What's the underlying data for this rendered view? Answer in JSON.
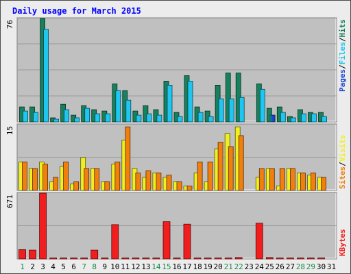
{
  "title": "Daily usage for March 2015",
  "colors": {
    "title": "#0000ff",
    "hits": "#17805c",
    "files": "#1ec6f0",
    "pages": "#1e46d0",
    "visits": "#f0f020",
    "sites": "#f07f0e",
    "kbytes": "#f01e1e",
    "plot_bg": "#c0c0c0",
    "frame_bg": "#ececec",
    "weekend_label": "#1a8a4a",
    "weekday_label": "#000000"
  },
  "chart_data": [
    {
      "type": "bar",
      "name": "hits-files-pages",
      "y_max_label": "76",
      "ylim": [
        0,
        76
      ],
      "legend": [
        "Pages",
        "Files",
        "Hits"
      ],
      "categories": [
        "1",
        "2",
        "3",
        "4",
        "5",
        "6",
        "7",
        "8",
        "9",
        "10",
        "11",
        "12",
        "13",
        "14",
        "15",
        "16",
        "17",
        "18",
        "19",
        "20",
        "21",
        "22",
        "23",
        "24",
        "25",
        "26",
        "27",
        "28",
        "29",
        "30",
        "31"
      ],
      "series": [
        {
          "name": "Hits",
          "values": [
            11,
            11,
            76,
            3,
            13,
            5,
            12,
            9,
            8,
            28,
            23,
            8,
            12,
            9,
            30,
            7,
            34,
            11,
            8,
            27,
            36,
            36,
            0,
            28,
            10,
            11,
            4,
            9,
            7,
            7,
            0
          ]
        },
        {
          "name": "Files",
          "values": [
            8,
            7,
            68,
            2,
            9,
            3,
            10,
            6,
            6,
            23,
            16,
            5,
            6,
            5,
            27,
            4,
            30,
            7,
            4,
            17,
            17,
            18,
            0,
            24,
            5,
            7,
            3,
            6,
            6,
            4,
            0
          ]
        },
        {
          "name": "Pages",
          "values": [
            0,
            0,
            0,
            0,
            0,
            0,
            0,
            0,
            0,
            0,
            0,
            0,
            0,
            0,
            0,
            0,
            0,
            0,
            0,
            0,
            0,
            0,
            0,
            0,
            5,
            0,
            0,
            0,
            0,
            0,
            0
          ]
        }
      ]
    },
    {
      "type": "bar",
      "name": "visits-sites",
      "y_max_label": "15",
      "ylim": [
        0,
        15
      ],
      "legend": [
        "Sites",
        "Visits"
      ],
      "categories": [
        "1",
        "2",
        "3",
        "4",
        "5",
        "6",
        "7",
        "8",
        "9",
        "10",
        "11",
        "12",
        "13",
        "14",
        "15",
        "16",
        "17",
        "18",
        "19",
        "20",
        "21",
        "22",
        "23",
        "24",
        "25",
        "26",
        "27",
        "28",
        "29",
        "30",
        "31"
      ],
      "series": [
        {
          "name": "Visits",
          "values": [
            6.5,
            5,
            6.5,
            2,
            5.5,
            1.5,
            7.5,
            5,
            2,
            6,
            11.5,
            5,
            3,
            4,
            3,
            2,
            1,
            4,
            2,
            9.5,
            13,
            14.5,
            0,
            3,
            5,
            1,
            5,
            4,
            3.5,
            3,
            0
          ]
        },
        {
          "name": "Sites",
          "values": [
            6.5,
            5,
            6,
            3,
            6.5,
            2,
            5,
            5,
            2,
            6.5,
            14.5,
            4,
            4.5,
            4,
            3.5,
            2,
            1,
            6.5,
            6.5,
            11,
            10,
            12.5,
            0,
            5,
            5,
            5,
            5,
            4,
            4,
            3,
            0
          ]
        }
      ]
    },
    {
      "type": "bar",
      "name": "kbytes",
      "y_max_label": "671",
      "ylim": [
        0,
        671
      ],
      "legend": [
        "KBytes"
      ],
      "categories": [
        "1",
        "2",
        "3",
        "4",
        "5",
        "6",
        "7",
        "8",
        "9",
        "10",
        "11",
        "12",
        "13",
        "14",
        "15",
        "16",
        "17",
        "18",
        "19",
        "20",
        "21",
        "22",
        "23",
        "24",
        "25",
        "26",
        "27",
        "28",
        "29",
        "30",
        "31"
      ],
      "series": [
        {
          "name": "KBytes",
          "values": [
            95,
            90,
            671,
            10,
            10,
            10,
            10,
            90,
            10,
            350,
            10,
            10,
            10,
            10,
            380,
            10,
            355,
            10,
            10,
            10,
            10,
            15,
            0,
            365,
            15,
            10,
            10,
            10,
            10,
            10,
            0
          ]
        }
      ]
    }
  ],
  "x_axis": {
    "labels": [
      "1",
      "2",
      "3",
      "4",
      "5",
      "6",
      "7",
      "8",
      "9",
      "10",
      "11",
      "12",
      "13",
      "14",
      "15",
      "16",
      "17",
      "18",
      "19",
      "20",
      "21",
      "22",
      "23",
      "24",
      "25",
      "26",
      "27",
      "28",
      "29",
      "30",
      "31"
    ],
    "weekend_days": [
      1,
      7,
      8,
      14,
      15,
      21,
      22,
      28,
      29
    ]
  }
}
